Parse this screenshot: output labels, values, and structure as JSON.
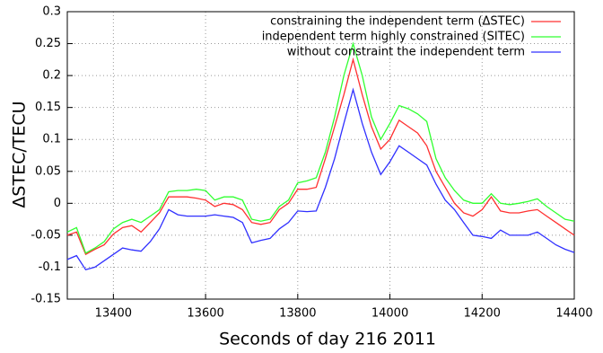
{
  "chart_data": {
    "type": "line",
    "xlabel": "Seconds of day 216 2011",
    "ylabel": "ΔSTEC/TECU",
    "x": [
      13300,
      13320,
      13340,
      13360,
      13380,
      13400,
      13420,
      13440,
      13460,
      13480,
      13500,
      13520,
      13540,
      13560,
      13580,
      13600,
      13620,
      13640,
      13660,
      13680,
      13700,
      13720,
      13740,
      13760,
      13780,
      13800,
      13820,
      13840,
      13860,
      13880,
      13900,
      13920,
      13940,
      13960,
      13980,
      14000,
      14020,
      14040,
      14060,
      14080,
      14100,
      14120,
      14140,
      14160,
      14180,
      14200,
      14220,
      14240,
      14260,
      14280,
      14300,
      14320,
      14340,
      14360,
      14380,
      14400
    ],
    "series": [
      {
        "name": "constraining the independent term (ΔSTEC)",
        "color": "#ff3030",
        "values": [
          -0.05,
          -0.045,
          -0.08,
          -0.072,
          -0.065,
          -0.048,
          -0.038,
          -0.035,
          -0.045,
          -0.03,
          -0.015,
          0.01,
          0.01,
          0.01,
          0.008,
          0.005,
          -0.005,
          0.0,
          -0.002,
          -0.01,
          -0.03,
          -0.033,
          -0.03,
          -0.01,
          0.0,
          0.022,
          0.022,
          0.025,
          0.07,
          0.12,
          0.17,
          0.225,
          0.17,
          0.12,
          0.085,
          0.1,
          0.13,
          0.12,
          0.11,
          0.09,
          0.05,
          0.025,
          0.0,
          -0.015,
          -0.02,
          -0.01,
          0.01,
          -0.012,
          -0.015,
          -0.015,
          -0.012,
          -0.01,
          -0.02,
          -0.03,
          -0.04,
          -0.05
        ]
      },
      {
        "name": "independent term highly constrained (SITEC)",
        "color": "#30ff30",
        "values": [
          -0.045,
          -0.038,
          -0.078,
          -0.07,
          -0.06,
          -0.04,
          -0.03,
          -0.025,
          -0.03,
          -0.02,
          -0.01,
          0.018,
          0.02,
          0.02,
          0.022,
          0.02,
          0.005,
          0.01,
          0.01,
          0.005,
          -0.025,
          -0.028,
          -0.025,
          -0.005,
          0.005,
          0.032,
          0.035,
          0.04,
          0.08,
          0.135,
          0.2,
          0.25,
          0.2,
          0.135,
          0.1,
          0.125,
          0.153,
          0.148,
          0.14,
          0.128,
          0.07,
          0.04,
          0.02,
          0.005,
          0.0,
          0.0,
          0.015,
          0.0,
          -0.002,
          0.0,
          0.003,
          0.007,
          -0.005,
          -0.015,
          -0.025,
          -0.028
        ]
      },
      {
        "name": "without constraint the independent term",
        "color": "#3030ff",
        "values": [
          -0.088,
          -0.082,
          -0.104,
          -0.1,
          -0.09,
          -0.08,
          -0.07,
          -0.073,
          -0.075,
          -0.06,
          -0.04,
          -0.01,
          -0.018,
          -0.02,
          -0.02,
          -0.02,
          -0.018,
          -0.02,
          -0.022,
          -0.03,
          -0.062,
          -0.058,
          -0.055,
          -0.04,
          -0.03,
          -0.012,
          -0.013,
          -0.012,
          0.025,
          0.07,
          0.125,
          0.178,
          0.125,
          0.08,
          0.045,
          0.065,
          0.09,
          0.08,
          0.07,
          0.06,
          0.03,
          0.005,
          -0.01,
          -0.03,
          -0.05,
          -0.052,
          -0.055,
          -0.042,
          -0.05,
          -0.05,
          -0.05,
          -0.045,
          -0.055,
          -0.065,
          -0.072,
          -0.077
        ]
      }
    ],
    "xlim": [
      13300,
      14400
    ],
    "xticks": [
      13400,
      13600,
      13800,
      14000,
      14200,
      14400
    ],
    "ylim": [
      -0.15,
      0.3
    ],
    "yticks": [
      -0.15,
      -0.1,
      -0.05,
      0,
      0.05,
      0.1,
      0.15,
      0.2,
      0.25,
      0.3
    ],
    "grid": true,
    "legend": "upper right"
  }
}
